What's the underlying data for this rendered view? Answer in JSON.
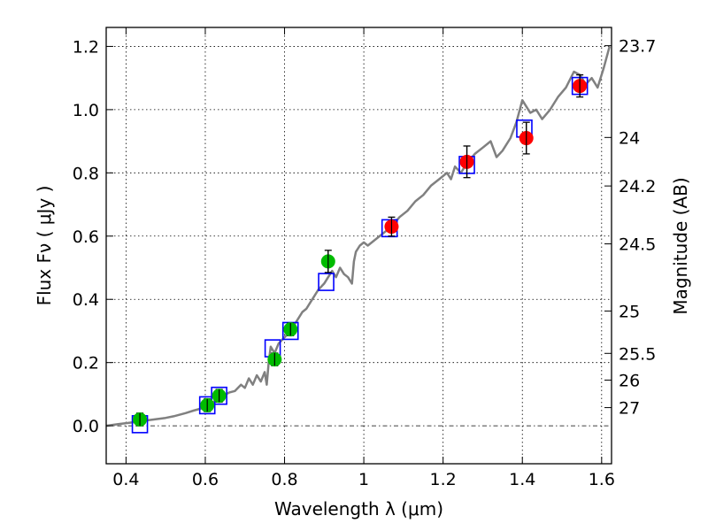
{
  "chart_data": {
    "type": "scatter",
    "title": "",
    "xlabel": "Wavelength  λ (μm)",
    "ylabel": "Flux  Fν  ( μJy )",
    "y2label": "Magnitude (AB)",
    "xlim": [
      0.35,
      1.625
    ],
    "ylim": [
      -0.12,
      1.26
    ],
    "grid": true,
    "x_ticks": [
      {
        "value": 0.4,
        "label": "0.4"
      },
      {
        "value": 0.6,
        "label": "0.6"
      },
      {
        "value": 0.8,
        "label": "0.8"
      },
      {
        "value": 1.0,
        "label": "1"
      },
      {
        "value": 1.2,
        "label": "1.2"
      },
      {
        "value": 1.4,
        "label": "1.4"
      },
      {
        "value": 1.6,
        "label": "1.6"
      }
    ],
    "y_ticks": [
      {
        "value": 0.0,
        "label": "0.0"
      },
      {
        "value": 0.2,
        "label": "0.2"
      },
      {
        "value": 0.4,
        "label": "0.4"
      },
      {
        "value": 0.6,
        "label": "0.6"
      },
      {
        "value": 0.8,
        "label": "0.8"
      },
      {
        "value": 1.0,
        "label": "1.0"
      },
      {
        "value": 1.2,
        "label": "1.2"
      }
    ],
    "magnitude_ticks": [
      {
        "value": 23.7,
        "label": "23.7"
      },
      {
        "value": 24.0,
        "label": "24"
      },
      {
        "value": 24.2,
        "label": "24.2"
      },
      {
        "value": 24.5,
        "label": "24.5"
      },
      {
        "value": 25.0,
        "label": "25"
      },
      {
        "value": 25.5,
        "label": "25.5"
      },
      {
        "value": 26.0,
        "label": "26"
      },
      {
        "value": 27.0,
        "label": "27"
      }
    ],
    "series": [
      {
        "kind": "model",
        "color": "#808080",
        "points": [
          [
            0.35,
            0.0
          ],
          [
            0.38,
            0.005
          ],
          [
            0.41,
            0.01
          ],
          [
            0.44,
            0.015
          ],
          [
            0.47,
            0.02
          ],
          [
            0.5,
            0.025
          ],
          [
            0.52,
            0.03
          ],
          [
            0.55,
            0.04
          ],
          [
            0.57,
            0.048
          ],
          [
            0.59,
            0.055
          ],
          [
            0.61,
            0.06
          ],
          [
            0.62,
            0.075
          ],
          [
            0.63,
            0.085
          ],
          [
            0.645,
            0.095
          ],
          [
            0.66,
            0.105
          ],
          [
            0.675,
            0.11
          ],
          [
            0.69,
            0.13
          ],
          [
            0.7,
            0.12
          ],
          [
            0.71,
            0.15
          ],
          [
            0.72,
            0.13
          ],
          [
            0.73,
            0.16
          ],
          [
            0.74,
            0.14
          ],
          [
            0.75,
            0.17
          ],
          [
            0.755,
            0.13
          ],
          [
            0.76,
            0.2
          ],
          [
            0.765,
            0.25
          ],
          [
            0.775,
            0.23
          ],
          [
            0.785,
            0.26
          ],
          [
            0.8,
            0.28
          ],
          [
            0.815,
            0.3
          ],
          [
            0.825,
            0.32
          ],
          [
            0.835,
            0.34
          ],
          [
            0.845,
            0.36
          ],
          [
            0.855,
            0.37
          ],
          [
            0.865,
            0.39
          ],
          [
            0.875,
            0.41
          ],
          [
            0.885,
            0.43
          ],
          [
            0.9,
            0.45
          ],
          [
            0.91,
            0.47
          ],
          [
            0.92,
            0.49
          ],
          [
            0.93,
            0.47
          ],
          [
            0.94,
            0.5
          ],
          [
            0.95,
            0.48
          ],
          [
            0.96,
            0.47
          ],
          [
            0.97,
            0.45
          ],
          [
            0.975,
            0.52
          ],
          [
            0.98,
            0.55
          ],
          [
            0.99,
            0.57
          ],
          [
            1.0,
            0.58
          ],
          [
            1.01,
            0.57
          ],
          [
            1.03,
            0.59
          ],
          [
            1.05,
            0.61
          ],
          [
            1.07,
            0.63
          ],
          [
            1.09,
            0.66
          ],
          [
            1.11,
            0.68
          ],
          [
            1.13,
            0.71
          ],
          [
            1.15,
            0.73
          ],
          [
            1.17,
            0.76
          ],
          [
            1.19,
            0.78
          ],
          [
            1.21,
            0.8
          ],
          [
            1.22,
            0.78
          ],
          [
            1.23,
            0.82
          ],
          [
            1.245,
            0.8
          ],
          [
            1.26,
            0.83
          ],
          [
            1.28,
            0.86
          ],
          [
            1.3,
            0.88
          ],
          [
            1.32,
            0.9
          ],
          [
            1.335,
            0.85
          ],
          [
            1.35,
            0.87
          ],
          [
            1.37,
            0.91
          ],
          [
            1.385,
            0.96
          ],
          [
            1.4,
            1.03
          ],
          [
            1.42,
            0.99
          ],
          [
            1.435,
            1.0
          ],
          [
            1.45,
            0.97
          ],
          [
            1.47,
            1.0
          ],
          [
            1.49,
            1.04
          ],
          [
            1.51,
            1.07
          ],
          [
            1.53,
            1.12
          ],
          [
            1.545,
            1.11
          ],
          [
            1.56,
            1.08
          ],
          [
            1.575,
            1.1
          ],
          [
            1.59,
            1.07
          ],
          [
            1.605,
            1.13
          ],
          [
            1.62,
            1.2
          ]
        ]
      },
      {
        "kind": "model_bandpass",
        "color": "#0000ff",
        "marker": "square",
        "points": [
          [
            0.435,
            0.005
          ],
          [
            0.605,
            0.065
          ],
          [
            0.635,
            0.095
          ],
          [
            0.77,
            0.245
          ],
          [
            0.815,
            0.3
          ],
          [
            0.905,
            0.455
          ],
          [
            1.065,
            0.625
          ],
          [
            1.26,
            0.825
          ],
          [
            1.405,
            0.94
          ],
          [
            1.545,
            1.075
          ]
        ]
      },
      {
        "kind": "observed",
        "color": "#00bb00",
        "marker": "circle",
        "points": [
          {
            "x": 0.435,
            "y": 0.02,
            "err": 0.02
          },
          {
            "x": 0.605,
            "y": 0.065,
            "err": 0.02
          },
          {
            "x": 0.635,
            "y": 0.095,
            "err": 0.02
          },
          {
            "x": 0.775,
            "y": 0.21,
            "err": 0.02
          },
          {
            "x": 0.815,
            "y": 0.305,
            "err": 0.02
          },
          {
            "x": 0.91,
            "y": 0.52,
            "err": 0.035
          }
        ]
      },
      {
        "kind": "observed",
        "color": "#ff0000",
        "marker": "circle",
        "points": [
          {
            "x": 1.07,
            "y": 0.63,
            "err": 0.03
          },
          {
            "x": 1.26,
            "y": 0.835,
            "err": 0.05
          },
          {
            "x": 1.41,
            "y": 0.91,
            "err": 0.05
          },
          {
            "x": 1.545,
            "y": 1.075,
            "err": 0.035
          }
        ]
      }
    ]
  }
}
